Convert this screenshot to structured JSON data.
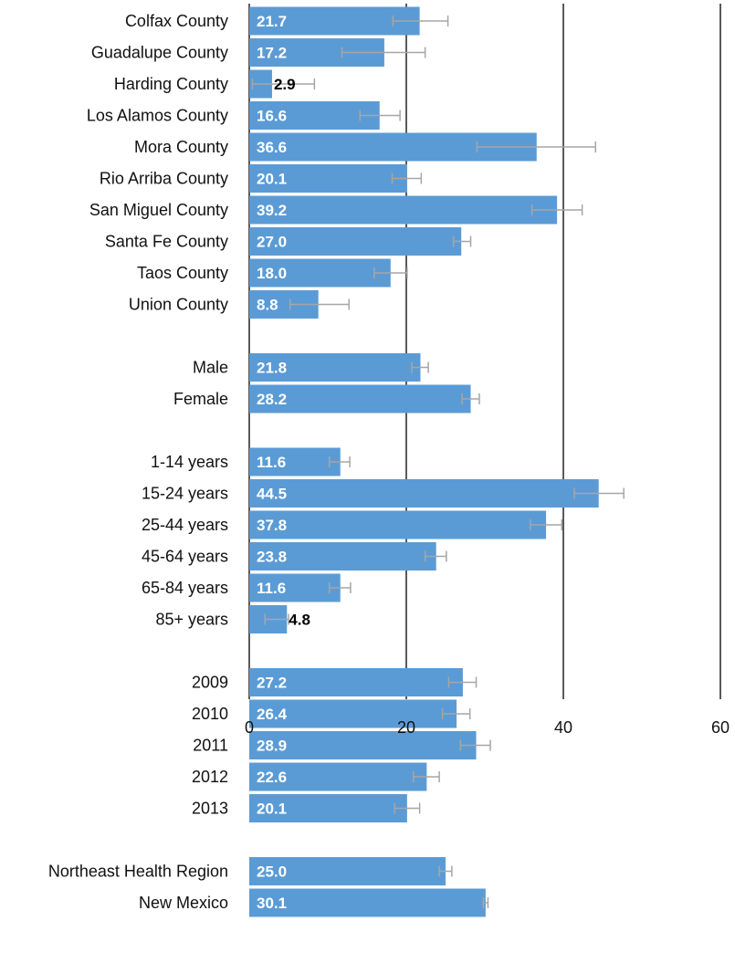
{
  "chart_data": {
    "type": "bar",
    "orientation": "horizontal",
    "title": "",
    "xlabel": "",
    "ylabel": "",
    "xlim": [
      0,
      60
    ],
    "x_ticks": [
      0,
      20,
      40,
      60
    ],
    "grid": "vertical lines at 0, 20, 40, 60",
    "legend": "none",
    "colors": {
      "bar": "#5B9BD5",
      "error_bar": "#A6A6A6",
      "label_inside": "#FFFFFF",
      "label_outside": "#000000",
      "axis": "#000000"
    },
    "groups": [
      {
        "categories": [
          "Colfax County",
          "Guadalupe County",
          "Harding County",
          "Los Alamos County",
          "Mora County",
          "Rio Arriba County",
          "San Miguel County",
          "Santa Fe County",
          "Taos County",
          "Union County"
        ],
        "values": [
          21.7,
          17.2,
          2.9,
          16.6,
          36.6,
          20.1,
          39.2,
          27.0,
          18.0,
          8.8
        ],
        "labels": [
          "21.7",
          "17.2",
          "2.9",
          "16.6",
          "36.6",
          "20.1",
          "39.2",
          "27.0",
          "18.0",
          "8.8"
        ],
        "error_low": [
          18.3,
          11.8,
          0.4,
          14.1,
          29.0,
          18.2,
          36.0,
          26.0,
          15.9,
          5.2
        ],
        "error_high": [
          25.3,
          22.4,
          8.3,
          19.2,
          44.1,
          21.9,
          42.4,
          28.2,
          20.1,
          12.7
        ]
      },
      {
        "categories": [
          "Male",
          "Female"
        ],
        "values": [
          21.8,
          28.2
        ],
        "labels": [
          "21.8",
          "28.2"
        ],
        "error_low": [
          20.7,
          27.1
        ],
        "error_high": [
          22.8,
          29.3
        ]
      },
      {
        "categories": [
          "1-14 years",
          "15-24 years",
          "25-44 years",
          "45-64 years",
          "65-84 years",
          "85+ years"
        ],
        "values": [
          11.6,
          44.5,
          37.8,
          23.8,
          11.6,
          4.8
        ],
        "labels": [
          "11.6",
          "44.5",
          "37.8",
          "23.8",
          "11.6",
          "4.8"
        ],
        "error_low": [
          10.2,
          41.4,
          35.8,
          22.4,
          10.2,
          2.0
        ],
        "error_high": [
          12.8,
          47.7,
          39.8,
          25.1,
          12.9,
          5.0
        ]
      },
      {
        "categories": [
          "2009",
          "2010",
          "2011",
          "2012",
          "2013"
        ],
        "values": [
          27.2,
          26.4,
          28.9,
          22.6,
          20.1
        ],
        "labels": [
          "27.2",
          "26.4",
          "28.9",
          "22.6",
          "20.1"
        ],
        "error_low": [
          25.4,
          24.6,
          26.9,
          20.9,
          18.5
        ],
        "error_high": [
          28.9,
          28.1,
          30.7,
          24.2,
          21.7
        ]
      },
      {
        "categories": [
          "Northeast Health Region",
          "New Mexico"
        ],
        "values": [
          25.0,
          30.1
        ],
        "labels": [
          "25.0",
          "30.1"
        ],
        "error_low": [
          24.2,
          29.8
        ],
        "error_high": [
          25.8,
          30.4
        ]
      }
    ]
  }
}
